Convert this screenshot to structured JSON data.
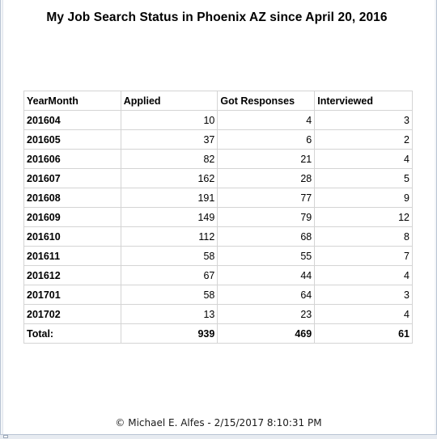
{
  "title": "My Job Search Status in Phoenix AZ since April 20, 2016",
  "table": {
    "headers": [
      "YearMonth",
      "Applied",
      "Got Responses",
      "Interviewed"
    ],
    "rows": [
      [
        "201604",
        "10",
        "4",
        "3"
      ],
      [
        "201605",
        "37",
        "6",
        "2"
      ],
      [
        "201606",
        "82",
        "21",
        "4"
      ],
      [
        "201607",
        "162",
        "28",
        "5"
      ],
      [
        "201608",
        "191",
        "77",
        "9"
      ],
      [
        "201609",
        "149",
        "79",
        "12"
      ],
      [
        "201610",
        "112",
        "68",
        "8"
      ],
      [
        "201611",
        "58",
        "55",
        "7"
      ],
      [
        "201612",
        "67",
        "44",
        "4"
      ],
      [
        "201701",
        "58",
        "64",
        "3"
      ],
      [
        "201702",
        "13",
        "23",
        "4"
      ]
    ],
    "total": [
      "Total:",
      "939",
      "469",
      "61"
    ]
  },
  "footer": "© Michael E. Alfes -  2/15/2017 8:10:31 PM"
}
